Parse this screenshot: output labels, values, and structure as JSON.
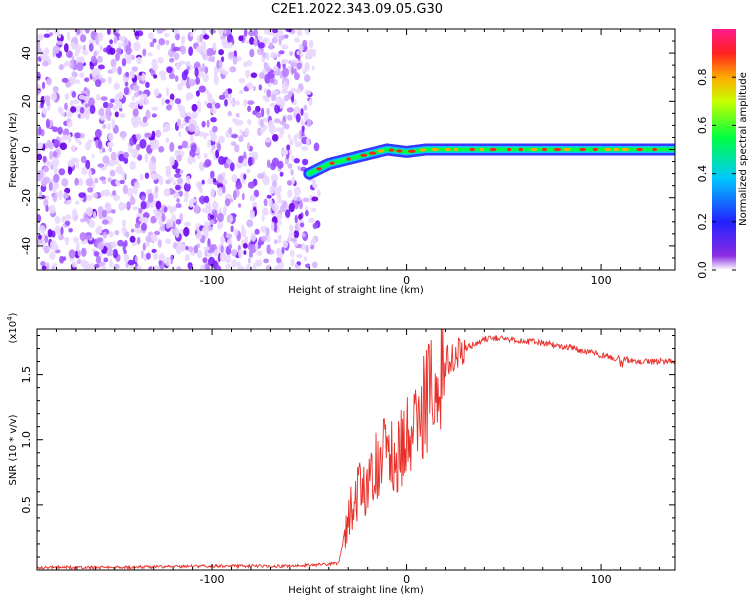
{
  "title": "C2E1.2022.343.09.05.G30",
  "chart_data": [
    {
      "type": "heatmap",
      "xlabel": "Height of straight line (km)",
      "ylabel": "Frequency (Hz)",
      "xlim": [
        -190,
        138
      ],
      "ylim": [
        -50,
        50
      ],
      "xticks": [
        -100,
        0,
        100
      ],
      "yticks": [
        -40,
        -20,
        0,
        20,
        40
      ],
      "colorbar": {
        "label": "Normalized spectral amplitude",
        "range": [
          0,
          1
        ],
        "ticks": [
          "0.0",
          "0.2",
          "0.4",
          "0.6",
          "0.8"
        ],
        "colormap": [
          "#ffffff",
          "#8a2be2",
          "#2222ff",
          "#00c8ff",
          "#00ff40",
          "#c8ff00",
          "#ffaa00",
          "#ff2020",
          "#ff1a8c"
        ]
      },
      "noise_region_x": [
        -190,
        -47
      ],
      "signal_ridge": {
        "x": [
          -50,
          -40,
          -30,
          -20,
          -10,
          0,
          10,
          20,
          60,
          100,
          138
        ],
        "y": [
          -10,
          -6,
          -4,
          -2,
          0,
          -1,
          0,
          0,
          0,
          0,
          0
        ]
      }
    },
    {
      "type": "line",
      "xlabel": "Height of straight line (km)",
      "ylabel": "SNR (10 * v/v)",
      "scale_label": "(x10",
      "scale_exponent": "4",
      "scale_suffix": ")",
      "xlim": [
        -190,
        138
      ],
      "ylim": [
        0,
        1.85
      ],
      "xticks": [
        -100,
        0,
        100
      ],
      "yticks": [
        0.5,
        1.0,
        1.5
      ],
      "ytick_labels": [
        "0.5",
        "1.0",
        "1.5"
      ],
      "color": "#e8302a",
      "series": [
        {
          "x": [
            -190,
            -150,
            -100,
            -60,
            -35,
            -30,
            -25,
            -20,
            -15,
            -10,
            -5,
            0,
            5,
            10,
            15,
            20,
            25,
            30,
            40,
            50,
            60,
            80,
            100,
            110,
            120,
            138
          ],
          "y": [
            0.02,
            0.02,
            0.03,
            0.03,
            0.05,
            0.4,
            0.6,
            0.65,
            0.8,
            0.9,
            0.85,
            1.0,
            1.1,
            1.3,
            1.4,
            1.6,
            1.65,
            1.7,
            1.77,
            1.78,
            1.76,
            1.72,
            1.65,
            1.62,
            1.6,
            1.6
          ]
        }
      ]
    }
  ]
}
